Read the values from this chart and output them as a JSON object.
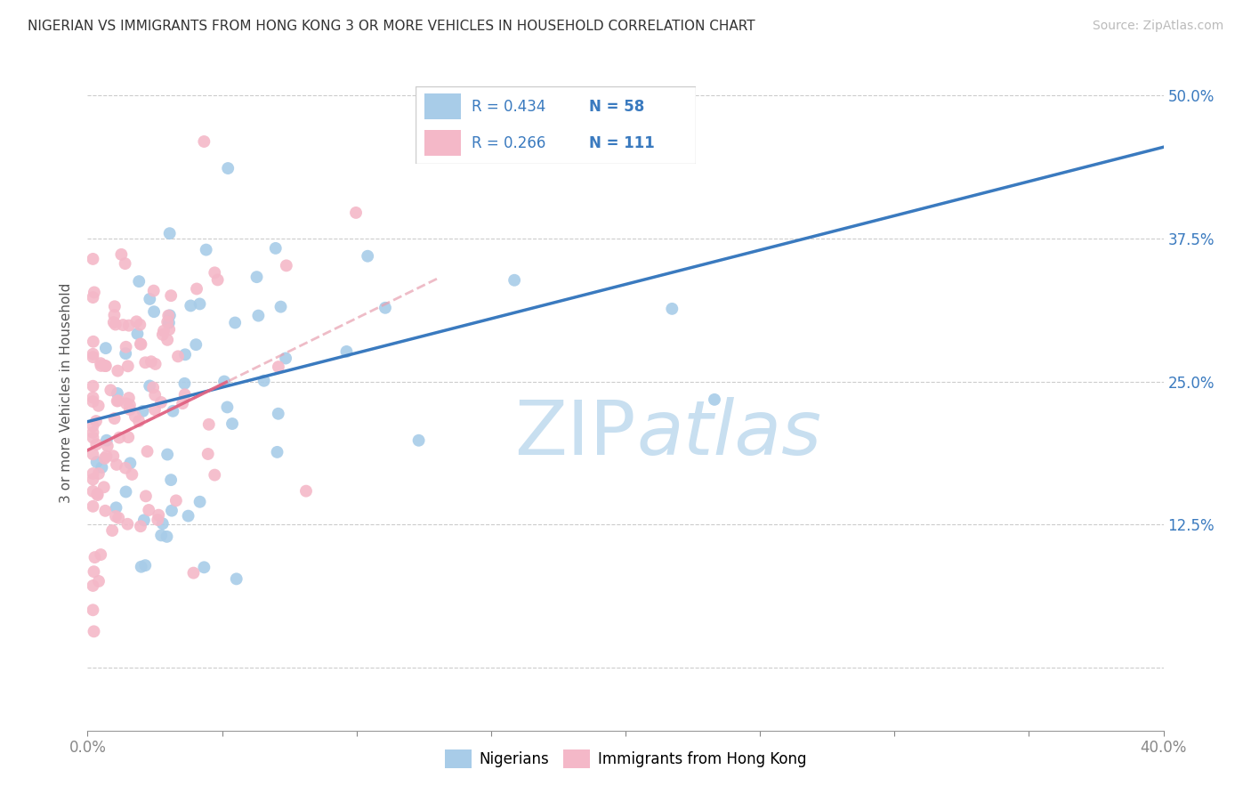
{
  "title": "NIGERIAN VS IMMIGRANTS FROM HONG KONG 3 OR MORE VEHICLES IN HOUSEHOLD CORRELATION CHART",
  "source": "Source: ZipAtlas.com",
  "ylabel": "3 or more Vehicles in Household",
  "xmin": 0.0,
  "xmax": 0.4,
  "ymin": -0.055,
  "ymax": 0.535,
  "blue_R": 0.434,
  "blue_N": 58,
  "pink_R": 0.266,
  "pink_N": 111,
  "blue_color": "#a8cce8",
  "pink_color": "#f4b8c8",
  "blue_line_color": "#3a7abf",
  "pink_line_color": "#e8a0b0",
  "text_blue": "#3a7abf",
  "legend_label_blue": "Nigerians",
  "legend_label_pink": "Immigrants from Hong Kong",
  "ytick_vals": [
    0.0,
    0.125,
    0.25,
    0.375,
    0.5
  ],
  "ytick_labels": [
    "",
    "12.5%",
    "25.0%",
    "37.5%",
    "50.0%"
  ],
  "xtick_vals": [
    0.0,
    0.05,
    0.1,
    0.15,
    0.2,
    0.25,
    0.3,
    0.35,
    0.4
  ],
  "watermark_zip": "ZIP",
  "watermark_atlas": "atlas",
  "watermark_color": "#c8dff0"
}
